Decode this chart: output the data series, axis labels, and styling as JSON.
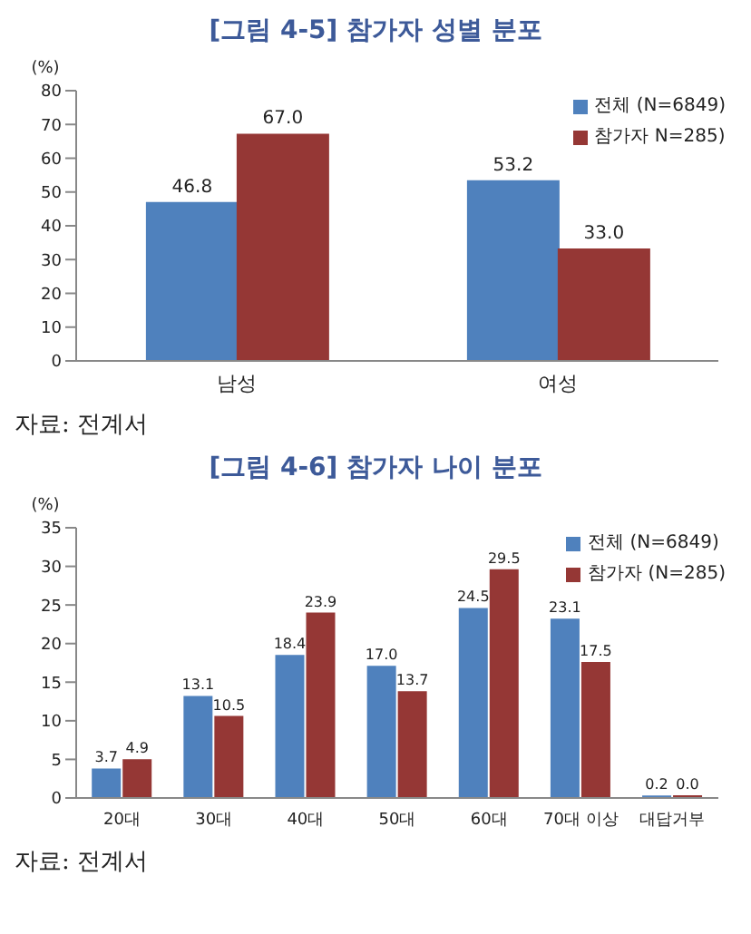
{
  "chart_data": [
    {
      "type": "bar",
      "title": "[그림 4-5] 참가자 성별 분포",
      "ylabel": "(%)",
      "categories": [
        "남성",
        "여성"
      ],
      "series": [
        {
          "name": "전체 (N=6849)",
          "color": "#4f81bd",
          "values": [
            46.8,
            53.2
          ],
          "value_labels": [
            "46.8",
            "53.2"
          ]
        },
        {
          "name": "참가자 N=285)",
          "color": "#953735",
          "values": [
            67.0,
            33.0
          ],
          "value_labels": [
            "67.0",
            "33.0"
          ]
        }
      ],
      "ylim": [
        0,
        80
      ],
      "yticks": [
        0,
        10,
        20,
        30,
        40,
        50,
        60,
        70,
        80
      ],
      "legend": "top right",
      "grid": false,
      "annotations": [
        "자료: 전계서"
      ]
    },
    {
      "type": "bar",
      "title": "[그림 4-6] 참가자 나이 분포",
      "ylabel": "(%)",
      "categories": [
        "20대",
        "30대",
        "40대",
        "50대",
        "60대",
        "70대 이상",
        "대답거부"
      ],
      "series": [
        {
          "name": "전체 (N=6849)",
          "color": "#4f81bd",
          "values": [
            3.7,
            13.1,
            18.4,
            17.0,
            24.5,
            23.1,
            0.2
          ],
          "value_labels": [
            "3.7",
            "13.1",
            "18.4",
            "17.0",
            "24.5",
            "23.1",
            "0.2"
          ]
        },
        {
          "name": "참가자 (N=285)",
          "color": "#953735",
          "values": [
            4.9,
            10.5,
            23.9,
            13.7,
            29.5,
            17.5,
            0.0
          ],
          "value_labels": [
            "4.9",
            "10.5",
            "23.9",
            "13.7",
            "29.5",
            "17.5",
            "0.0"
          ]
        }
      ],
      "ylim": [
        0,
        35
      ],
      "yticks": [
        0,
        5,
        10,
        15,
        20,
        25,
        30,
        35
      ],
      "legend": "top right",
      "grid": false,
      "annotations": [
        "자료: 전계서"
      ]
    }
  ]
}
